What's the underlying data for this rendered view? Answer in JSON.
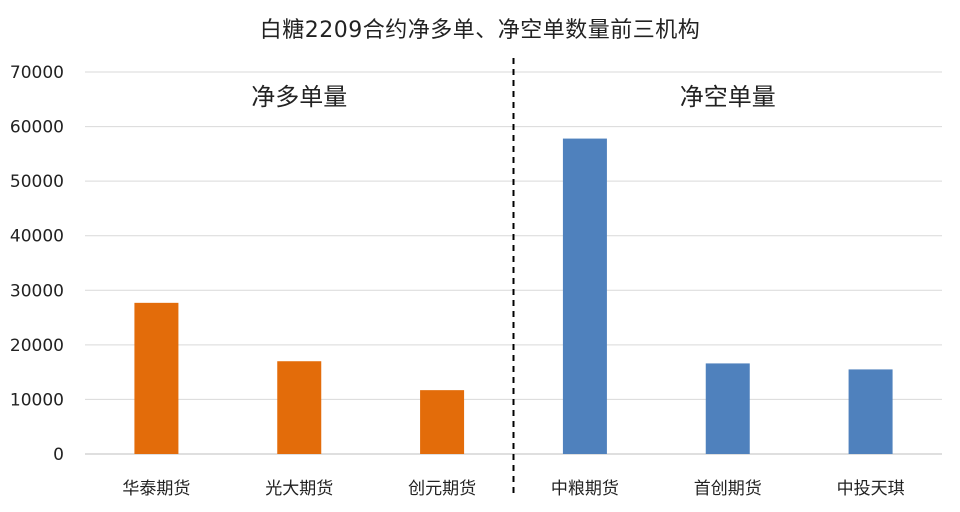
{
  "chart_data": {
    "type": "bar",
    "title": "白糖2209合约净多单、净空单数量前三机构",
    "categories": [
      "华泰期货",
      "光大期货",
      "创元期货",
      "中粮期货",
      "首创期货",
      "中投天琪"
    ],
    "values": [
      27700,
      17000,
      11700,
      57800,
      16600,
      15500
    ],
    "ylim": [
      0,
      70000
    ],
    "yticks": [
      0,
      10000,
      20000,
      30000,
      40000,
      50000,
      60000,
      70000
    ],
    "grid": true,
    "groups": [
      {
        "label": "净多单量",
        "indices": [
          0,
          1,
          2
        ],
        "color": "#E36C0A"
      },
      {
        "label": "净空单量",
        "indices": [
          3,
          4,
          5
        ],
        "color": "#4F81BD"
      }
    ]
  }
}
